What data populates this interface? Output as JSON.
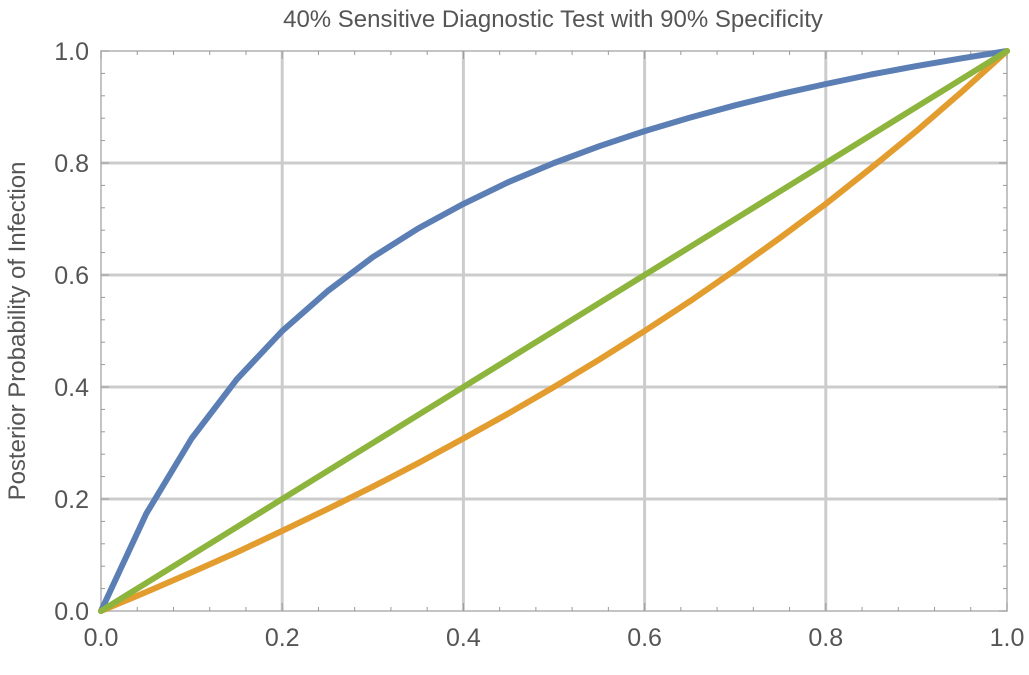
{
  "chart_data": {
    "type": "line",
    "title": "40% Sensitive Diagnostic Test with 90% Specificity",
    "xlabel": "",
    "ylabel": "Posterior Probability of Infection",
    "xlim": [
      0,
      1
    ],
    "ylim": [
      0,
      1
    ],
    "grid": true,
    "x_ticks": [
      "0.0",
      "0.2",
      "0.4",
      "0.6",
      "0.8",
      "1.0"
    ],
    "y_ticks": [
      "0.0",
      "0.2",
      "0.4",
      "0.6",
      "0.8",
      "1.0"
    ],
    "x": [
      0,
      0.05,
      0.1,
      0.15,
      0.2,
      0.25,
      0.3,
      0.35,
      0.4,
      0.45,
      0.5,
      0.55,
      0.6,
      0.65,
      0.7,
      0.75,
      0.8,
      0.85,
      0.9,
      0.95,
      1.0
    ],
    "series": [
      {
        "color": "#5b7fb5",
        "values": [
          0,
          0.174,
          0.308,
          0.414,
          0.5,
          0.571,
          0.632,
          0.683,
          0.727,
          0.766,
          0.8,
          0.83,
          0.857,
          0.881,
          0.903,
          0.923,
          0.941,
          0.958,
          0.973,
          0.987,
          1.0
        ]
      },
      {
        "color": "#8db43d",
        "values": [
          0,
          0.05,
          0.1,
          0.15,
          0.2,
          0.25,
          0.3,
          0.35,
          0.4,
          0.45,
          0.5,
          0.55,
          0.6,
          0.65,
          0.7,
          0.75,
          0.8,
          0.85,
          0.9,
          0.95,
          1.0
        ]
      },
      {
        "color": "#e39c2e",
        "values": [
          0,
          0.034,
          0.069,
          0.105,
          0.143,
          0.182,
          0.222,
          0.264,
          0.308,
          0.353,
          0.4,
          0.449,
          0.5,
          0.553,
          0.609,
          0.667,
          0.727,
          0.791,
          0.857,
          0.927,
          1.0
        ]
      }
    ]
  }
}
